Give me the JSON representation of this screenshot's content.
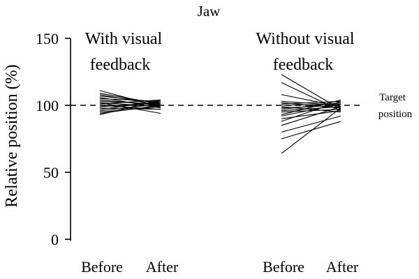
{
  "chart_data": {
    "type": "line",
    "title": "Jaw",
    "ylabel": "Relative position (%)",
    "xlabel": "",
    "ylim": [
      0,
      150
    ],
    "yticks": [
      "0",
      "50",
      "100",
      "150"
    ],
    "grid": false,
    "reference_line": {
      "value": 100,
      "label_line1": "Target",
      "label_line2": "position",
      "style": "dashed"
    },
    "groups": [
      {
        "label_line1": "With visual",
        "label_line2": "feedback",
        "categories": [
          "Before",
          "After"
        ],
        "pairs": [
          [
            111,
            99
          ],
          [
            109,
            101
          ],
          [
            108,
            100
          ],
          [
            107,
            102
          ],
          [
            106,
            98
          ],
          [
            105,
            103
          ],
          [
            104,
            100
          ],
          [
            103,
            101
          ],
          [
            102,
            99
          ],
          [
            101,
            104
          ],
          [
            100,
            100
          ],
          [
            99,
            102
          ],
          [
            98,
            97
          ],
          [
            97,
            103
          ],
          [
            96,
            101
          ],
          [
            95,
            99
          ],
          [
            94,
            100
          ],
          [
            93,
            104
          ],
          [
            102,
            94
          ],
          [
            100,
            97
          ]
        ]
      },
      {
        "label_line1": "Without visual",
        "label_line2": "feedback",
        "categories": [
          "Before",
          "After"
        ],
        "pairs": [
          [
            123,
            97
          ],
          [
            117,
            96
          ],
          [
            108,
            99
          ],
          [
            103,
            100
          ],
          [
            102,
            98
          ],
          [
            101,
            103
          ],
          [
            100,
            101
          ],
          [
            99,
            95
          ],
          [
            98,
            100
          ],
          [
            97,
            102
          ],
          [
            96,
            99
          ],
          [
            95,
            97
          ],
          [
            93,
            104
          ],
          [
            92,
            101
          ],
          [
            90,
            96
          ],
          [
            88,
            103
          ],
          [
            85,
            99
          ],
          [
            80,
            92
          ],
          [
            75,
            88
          ],
          [
            64,
            98
          ]
        ]
      }
    ]
  }
}
